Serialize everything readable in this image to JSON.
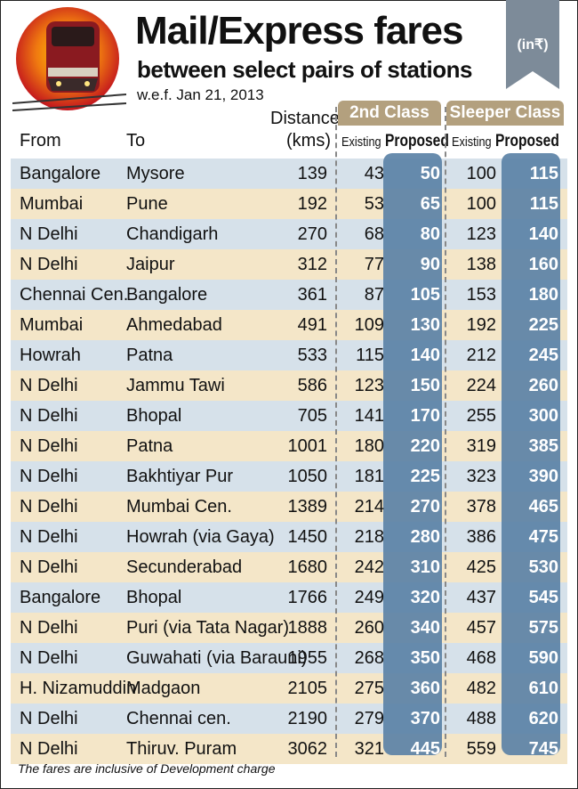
{
  "header": {
    "title": "Mail/Express fares",
    "subtitle": "between select pairs of stations",
    "effective": "w.e.f. Jan 21, 2013",
    "unit": "(in₹)"
  },
  "columns": {
    "from": "From",
    "to": "To",
    "distance_line1": "Distance",
    "distance_line2": "(kms)",
    "second_class": "2nd Class",
    "sleeper_class": "Sleeper Class",
    "existing": "Existing",
    "proposed": "Proposed"
  },
  "colors": {
    "row_blue": "#d6e1ea",
    "row_tan": "#f4e6c8",
    "proposed_col": "#5b82a6",
    "tab": "#b3a07e",
    "banner": "#7d8b99"
  },
  "rows": [
    {
      "from": "Bangalore",
      "to": "Mysore",
      "distance": "139",
      "sc_existing": "43",
      "sc_proposed": "50",
      "sl_existing": "100",
      "sl_proposed": "115"
    },
    {
      "from": "Mumbai",
      "to": "Pune",
      "distance": "192",
      "sc_existing": "53",
      "sc_proposed": "65",
      "sl_existing": "100",
      "sl_proposed": "115"
    },
    {
      "from": "N Delhi",
      "to": "Chandigarh",
      "distance": "270",
      "sc_existing": "68",
      "sc_proposed": "80",
      "sl_existing": "123",
      "sl_proposed": "140"
    },
    {
      "from": "N Delhi",
      "to": "Jaipur",
      "distance": "312",
      "sc_existing": "77",
      "sc_proposed": "90",
      "sl_existing": "138",
      "sl_proposed": "160"
    },
    {
      "from": "Chennai Cen.",
      "to": "Bangalore",
      "distance": "361",
      "sc_existing": "87",
      "sc_proposed": "105",
      "sl_existing": "153",
      "sl_proposed": "180"
    },
    {
      "from": "Mumbai",
      "to": "Ahmedabad",
      "distance": "491",
      "sc_existing": "109",
      "sc_proposed": "130",
      "sl_existing": "192",
      "sl_proposed": "225"
    },
    {
      "from": "Howrah",
      "to": "Patna",
      "distance": "533",
      "sc_existing": "115",
      "sc_proposed": "140",
      "sl_existing": "212",
      "sl_proposed": "245"
    },
    {
      "from": "N Delhi",
      "to": "Jammu Tawi",
      "distance": "586",
      "sc_existing": "123",
      "sc_proposed": "150",
      "sl_existing": "224",
      "sl_proposed": "260"
    },
    {
      "from": "N Delhi",
      "to": "Bhopal",
      "distance": "705",
      "sc_existing": "141",
      "sc_proposed": "170",
      "sl_existing": "255",
      "sl_proposed": "300"
    },
    {
      "from": "N Delhi",
      "to": "Patna",
      "distance": "1001",
      "sc_existing": "180",
      "sc_proposed": "220",
      "sl_existing": "319",
      "sl_proposed": "385"
    },
    {
      "from": "N Delhi",
      "to": "Bakhtiyar Pur",
      "distance": "1050",
      "sc_existing": "181",
      "sc_proposed": "225",
      "sl_existing": "323",
      "sl_proposed": "390"
    },
    {
      "from": "N Delhi",
      "to": "Mumbai Cen.",
      "distance": "1389",
      "sc_existing": "214",
      "sc_proposed": "270",
      "sl_existing": "378",
      "sl_proposed": "465"
    },
    {
      "from": "N Delhi",
      "to": "Howrah (via Gaya)",
      "distance": "1450",
      "sc_existing": "218",
      "sc_proposed": "280",
      "sl_existing": "386",
      "sl_proposed": "475"
    },
    {
      "from": "N Delhi",
      "to": "Secunderabad",
      "distance": "1680",
      "sc_existing": "242",
      "sc_proposed": "310",
      "sl_existing": "425",
      "sl_proposed": "530"
    },
    {
      "from": "Bangalore",
      "to": "Bhopal",
      "distance": "1766",
      "sc_existing": "249",
      "sc_proposed": "320",
      "sl_existing": "437",
      "sl_proposed": "545"
    },
    {
      "from": "N Delhi",
      "to": "Puri (via Tata Nagar)",
      "distance": "1888",
      "sc_existing": "260",
      "sc_proposed": "340",
      "sl_existing": "457",
      "sl_proposed": "575"
    },
    {
      "from": "N Delhi",
      "to": "Guwahati (via Barauni)",
      "distance": "1955",
      "sc_existing": "268",
      "sc_proposed": "350",
      "sl_existing": "468",
      "sl_proposed": "590"
    },
    {
      "from": "H. Nizamuddin",
      "to": "Madgaon",
      "distance": "2105",
      "sc_existing": "275",
      "sc_proposed": "360",
      "sl_existing": "482",
      "sl_proposed": "610"
    },
    {
      "from": "N Delhi",
      "to": "Chennai cen.",
      "distance": "2190",
      "sc_existing": "279",
      "sc_proposed": "370",
      "sl_existing": "488",
      "sl_proposed": "620"
    },
    {
      "from": "N Delhi",
      "to": "Thiruv. Puram",
      "distance": "3062",
      "sc_existing": "321",
      "sc_proposed": "445",
      "sl_existing": "559",
      "sl_proposed": "745"
    }
  ],
  "footnote": "The fares are inclusive of Development charge"
}
